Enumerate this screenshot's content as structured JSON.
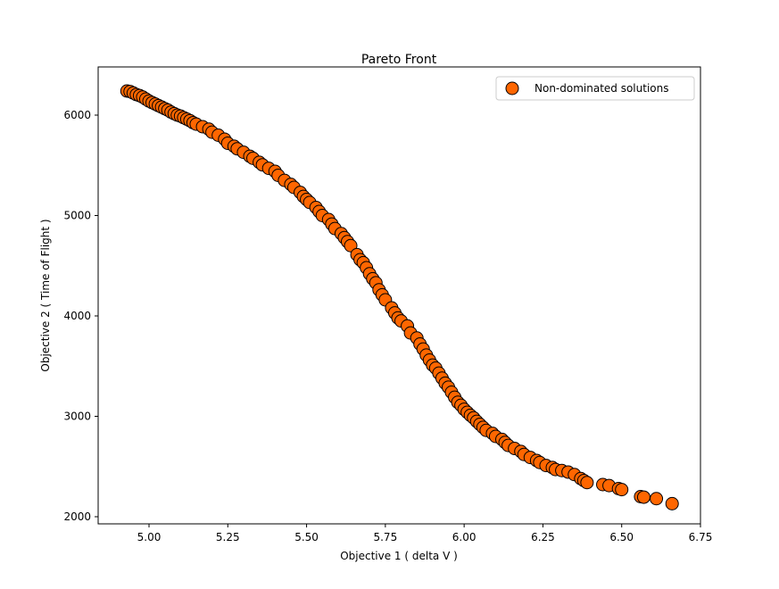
{
  "chart_data": {
    "type": "scatter",
    "title": "Pareto Front",
    "xlabel": "Objective 1    ( delta V )",
    "ylabel": "Objective 2    ( Time of Flight )",
    "xlim": [
      4.83,
      6.75
    ],
    "ylim": [
      1930,
      6440
    ],
    "xticks": [
      5.0,
      5.25,
      5.5,
      5.75,
      6.0,
      6.25,
      6.5,
      6.75
    ],
    "xtick_labels": [
      "5.00",
      "5.25",
      "5.50",
      "5.75",
      "6.00",
      "6.25",
      "6.50",
      "6.75"
    ],
    "yticks": [
      2000,
      3000,
      4000,
      5000,
      6000
    ],
    "ytick_labels": [
      "2000",
      "3000",
      "4000",
      "5000",
      "6000"
    ],
    "grid": false,
    "legend": {
      "position": "top-right",
      "entries": [
        "Non-dominated solutions"
      ]
    },
    "colors": {
      "marker_fill": "#ff6600",
      "marker_edge": "#000000"
    },
    "series": [
      {
        "name": "Non-dominated solutions",
        "points": [
          [
            4.93,
            6240
          ],
          [
            4.94,
            6235
          ],
          [
            4.95,
            6220
          ],
          [
            4.96,
            6205
          ],
          [
            4.97,
            6195
          ],
          [
            4.98,
            6180
          ],
          [
            4.99,
            6160
          ],
          [
            5.0,
            6140
          ],
          [
            5.01,
            6125
          ],
          [
            5.02,
            6110
          ],
          [
            5.03,
            6095
          ],
          [
            5.04,
            6080
          ],
          [
            5.05,
            6065
          ],
          [
            5.06,
            6050
          ],
          [
            5.07,
            6030
          ],
          [
            5.08,
            6015
          ],
          [
            5.09,
            6000
          ],
          [
            5.1,
            5990
          ],
          [
            5.11,
            5975
          ],
          [
            5.12,
            5960
          ],
          [
            5.13,
            5945
          ],
          [
            5.14,
            5925
          ],
          [
            5.15,
            5910
          ],
          [
            5.17,
            5885
          ],
          [
            5.19,
            5860
          ],
          [
            5.2,
            5830
          ],
          [
            5.22,
            5800
          ],
          [
            5.24,
            5760
          ],
          [
            5.25,
            5720
          ],
          [
            5.27,
            5690
          ],
          [
            5.28,
            5665
          ],
          [
            5.3,
            5630
          ],
          [
            5.32,
            5590
          ],
          [
            5.33,
            5570
          ],
          [
            5.35,
            5530
          ],
          [
            5.36,
            5505
          ],
          [
            5.38,
            5470
          ],
          [
            5.4,
            5440
          ],
          [
            5.41,
            5400
          ],
          [
            5.43,
            5350
          ],
          [
            5.45,
            5310
          ],
          [
            5.46,
            5280
          ],
          [
            5.48,
            5230
          ],
          [
            5.49,
            5190
          ],
          [
            5.5,
            5160
          ],
          [
            5.51,
            5130
          ],
          [
            5.53,
            5080
          ],
          [
            5.54,
            5040
          ],
          [
            5.55,
            5000
          ],
          [
            5.57,
            4960
          ],
          [
            5.58,
            4915
          ],
          [
            5.59,
            4870
          ],
          [
            5.61,
            4820
          ],
          [
            5.62,
            4780
          ],
          [
            5.63,
            4740
          ],
          [
            5.64,
            4700
          ],
          [
            5.66,
            4610
          ],
          [
            5.67,
            4560
          ],
          [
            5.68,
            4530
          ],
          [
            5.69,
            4480
          ],
          [
            5.7,
            4420
          ],
          [
            5.71,
            4370
          ],
          [
            5.72,
            4330
          ],
          [
            5.73,
            4260
          ],
          [
            5.74,
            4210
          ],
          [
            5.75,
            4160
          ],
          [
            5.77,
            4080
          ],
          [
            5.78,
            4030
          ],
          [
            5.79,
            3980
          ],
          [
            5.8,
            3950
          ],
          [
            5.82,
            3900
          ],
          [
            5.83,
            3830
          ],
          [
            5.85,
            3780
          ],
          [
            5.86,
            3720
          ],
          [
            5.87,
            3670
          ],
          [
            5.88,
            3610
          ],
          [
            5.89,
            3560
          ],
          [
            5.9,
            3510
          ],
          [
            5.91,
            3480
          ],
          [
            5.92,
            3430
          ],
          [
            5.93,
            3380
          ],
          [
            5.94,
            3330
          ],
          [
            5.95,
            3290
          ],
          [
            5.96,
            3240
          ],
          [
            5.97,
            3190
          ],
          [
            5.98,
            3140
          ],
          [
            5.99,
            3110
          ],
          [
            6.0,
            3070
          ],
          [
            6.01,
            3040
          ],
          [
            6.02,
            3010
          ],
          [
            6.03,
            2985
          ],
          [
            6.04,
            2950
          ],
          [
            6.05,
            2920
          ],
          [
            6.06,
            2890
          ],
          [
            6.07,
            2860
          ],
          [
            6.09,
            2830
          ],
          [
            6.1,
            2800
          ],
          [
            6.12,
            2770
          ],
          [
            6.13,
            2740
          ],
          [
            6.14,
            2710
          ],
          [
            6.16,
            2680
          ],
          [
            6.18,
            2650
          ],
          [
            6.19,
            2620
          ],
          [
            6.21,
            2590
          ],
          [
            6.23,
            2560
          ],
          [
            6.24,
            2540
          ],
          [
            6.26,
            2510
          ],
          [
            6.28,
            2490
          ],
          [
            6.29,
            2470
          ],
          [
            6.31,
            2460
          ],
          [
            6.33,
            2445
          ],
          [
            6.35,
            2420
          ],
          [
            6.37,
            2380
          ],
          [
            6.38,
            2360
          ],
          [
            6.39,
            2340
          ],
          [
            6.44,
            2320
          ],
          [
            6.46,
            2310
          ],
          [
            6.49,
            2280
          ],
          [
            6.5,
            2270
          ],
          [
            6.56,
            2200
          ],
          [
            6.57,
            2195
          ],
          [
            6.61,
            2180
          ],
          [
            6.66,
            2130
          ]
        ]
      }
    ]
  }
}
